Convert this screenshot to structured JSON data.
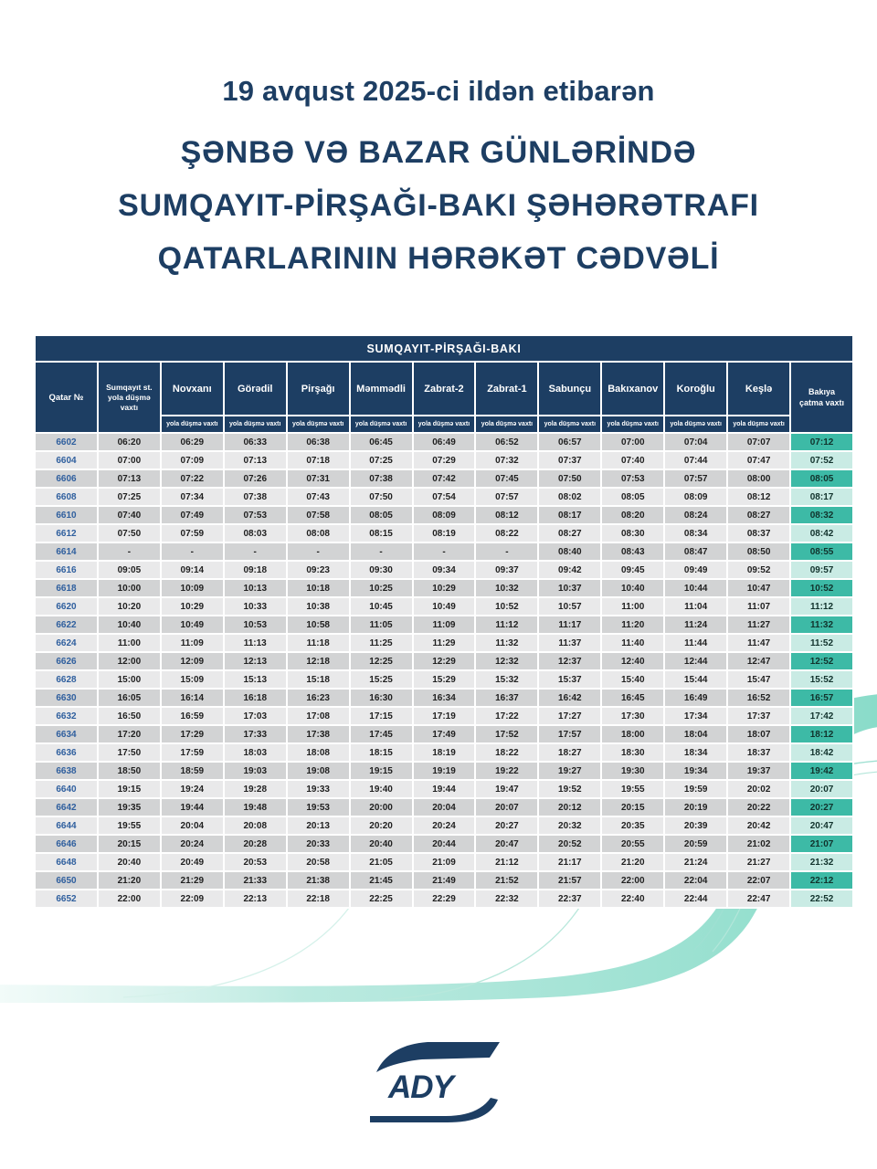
{
  "page": {
    "title_line1": "19 avqust 2025-ci ildən etibarən",
    "title_line2": "ŞƏNBƏ VƏ BAZAR GÜNLƏRİNDƏ",
    "title_line3": "SUMQAYIT-PİRŞAĞI-BAKI ŞƏHƏRƏTRAFI",
    "title_line4": "QATARLARININ HƏRƏKƏT CƏDVƏLİ"
  },
  "colors": {
    "navy": "#1d3e63",
    "train_number_blue": "#2f5f9e",
    "row_dark": "#d2d3d4",
    "row_light": "#e9e9ea",
    "arrival_dark_teal": "#3dbaa6",
    "arrival_light_teal": "#c9ebe4",
    "ribbon_teal": "#8adcc9"
  },
  "table": {
    "banner": "SUMQAYIT-PİRŞAĞI-BAKI",
    "col_train": "Qatar  №",
    "col_sumqayit": "Sumqayıt st.\nyola düşmə\nvaxtı",
    "departure_label": "yola düşmə vaxtı",
    "col_arrival": "Bakıya\nçatma vaxtı",
    "stations": [
      "Novxanı",
      "Görədil",
      "Pirşağı",
      "Məmmədli",
      "Zabrat-2",
      "Zabrat-1",
      "Sabunçu",
      "Bakıxanov",
      "Koroğlu",
      "Keşlə"
    ],
    "rows": [
      {
        "no": "6602",
        "times": [
          "06:20",
          "06:29",
          "06:33",
          "06:38",
          "06:45",
          "06:49",
          "06:52",
          "06:57",
          "07:00",
          "07:04",
          "07:07"
        ],
        "arrival": "07:12"
      },
      {
        "no": "6604",
        "times": [
          "07:00",
          "07:09",
          "07:13",
          "07:18",
          "07:25",
          "07:29",
          "07:32",
          "07:37",
          "07:40",
          "07:44",
          "07:47"
        ],
        "arrival": "07:52"
      },
      {
        "no": "6606",
        "times": [
          "07:13",
          "07:22",
          "07:26",
          "07:31",
          "07:38",
          "07:42",
          "07:45",
          "07:50",
          "07:53",
          "07:57",
          "08:00"
        ],
        "arrival": "08:05"
      },
      {
        "no": "6608",
        "times": [
          "07:25",
          "07:34",
          "07:38",
          "07:43",
          "07:50",
          "07:54",
          "07:57",
          "08:02",
          "08:05",
          "08:09",
          "08:12"
        ],
        "arrival": "08:17"
      },
      {
        "no": "6610",
        "times": [
          "07:40",
          "07:49",
          "07:53",
          "07:58",
          "08:05",
          "08:09",
          "08:12",
          "08:17",
          "08:20",
          "08:24",
          "08:27"
        ],
        "arrival": "08:32"
      },
      {
        "no": "6612",
        "times": [
          "07:50",
          "07:59",
          "08:03",
          "08:08",
          "08:15",
          "08:19",
          "08:22",
          "08:27",
          "08:30",
          "08:34",
          "08:37"
        ],
        "arrival": "08:42"
      },
      {
        "no": "6614",
        "times": [
          "-",
          "-",
          "-",
          "-",
          "-",
          "-",
          "-",
          "08:40",
          "08:43",
          "08:47",
          "08:50"
        ],
        "arrival": "08:55"
      },
      {
        "no": "6616",
        "times": [
          "09:05",
          "09:14",
          "09:18",
          "09:23",
          "09:30",
          "09:34",
          "09:37",
          "09:42",
          "09:45",
          "09:49",
          "09:52"
        ],
        "arrival": "09:57"
      },
      {
        "no": "6618",
        "times": [
          "10:00",
          "10:09",
          "10:13",
          "10:18",
          "10:25",
          "10:29",
          "10:32",
          "10:37",
          "10:40",
          "10:44",
          "10:47"
        ],
        "arrival": "10:52"
      },
      {
        "no": "6620",
        "times": [
          "10:20",
          "10:29",
          "10:33",
          "10:38",
          "10:45",
          "10:49",
          "10:52",
          "10:57",
          "11:00",
          "11:04",
          "11:07"
        ],
        "arrival": "11:12"
      },
      {
        "no": "6622",
        "times": [
          "10:40",
          "10:49",
          "10:53",
          "10:58",
          "11:05",
          "11:09",
          "11:12",
          "11:17",
          "11:20",
          "11:24",
          "11:27"
        ],
        "arrival": "11:32"
      },
      {
        "no": "6624",
        "times": [
          "11:00",
          "11:09",
          "11:13",
          "11:18",
          "11:25",
          "11:29",
          "11:32",
          "11:37",
          "11:40",
          "11:44",
          "11:47"
        ],
        "arrival": "11:52"
      },
      {
        "no": "6626",
        "times": [
          "12:00",
          "12:09",
          "12:13",
          "12:18",
          "12:25",
          "12:29",
          "12:32",
          "12:37",
          "12:40",
          "12:44",
          "12:47"
        ],
        "arrival": "12:52"
      },
      {
        "no": "6628",
        "times": [
          "15:00",
          "15:09",
          "15:13",
          "15:18",
          "15:25",
          "15:29",
          "15:32",
          "15:37",
          "15:40",
          "15:44",
          "15:47"
        ],
        "arrival": "15:52"
      },
      {
        "no": "6630",
        "times": [
          "16:05",
          "16:14",
          "16:18",
          "16:23",
          "16:30",
          "16:34",
          "16:37",
          "16:42",
          "16:45",
          "16:49",
          "16:52"
        ],
        "arrival": "16:57"
      },
      {
        "no": "6632",
        "times": [
          "16:50",
          "16:59",
          "17:03",
          "17:08",
          "17:15",
          "17:19",
          "17:22",
          "17:27",
          "17:30",
          "17:34",
          "17:37"
        ],
        "arrival": "17:42"
      },
      {
        "no": "6634",
        "times": [
          "17:20",
          "17:29",
          "17:33",
          "17:38",
          "17:45",
          "17:49",
          "17:52",
          "17:57",
          "18:00",
          "18:04",
          "18:07"
        ],
        "arrival": "18:12"
      },
      {
        "no": "6636",
        "times": [
          "17:50",
          "17:59",
          "18:03",
          "18:08",
          "18:15",
          "18:19",
          "18:22",
          "18:27",
          "18:30",
          "18:34",
          "18:37"
        ],
        "arrival": "18:42"
      },
      {
        "no": "6638",
        "times": [
          "18:50",
          "18:59",
          "19:03",
          "19:08",
          "19:15",
          "19:19",
          "19:22",
          "19:27",
          "19:30",
          "19:34",
          "19:37"
        ],
        "arrival": "19:42"
      },
      {
        "no": "6640",
        "times": [
          "19:15",
          "19:24",
          "19:28",
          "19:33",
          "19:40",
          "19:44",
          "19:47",
          "19:52",
          "19:55",
          "19:59",
          "20:02"
        ],
        "arrival": "20:07"
      },
      {
        "no": "6642",
        "times": [
          "19:35",
          "19:44",
          "19:48",
          "19:53",
          "20:00",
          "20:04",
          "20:07",
          "20:12",
          "20:15",
          "20:19",
          "20:22"
        ],
        "arrival": "20:27"
      },
      {
        "no": "6644",
        "times": [
          "19:55",
          "20:04",
          "20:08",
          "20:13",
          "20:20",
          "20:24",
          "20:27",
          "20:32",
          "20:35",
          "20:39",
          "20:42"
        ],
        "arrival": "20:47"
      },
      {
        "no": "6646",
        "times": [
          "20:15",
          "20:24",
          "20:28",
          "20:33",
          "20:40",
          "20:44",
          "20:47",
          "20:52",
          "20:55",
          "20:59",
          "21:02"
        ],
        "arrival": "21:07"
      },
      {
        "no": "6648",
        "times": [
          "20:40",
          "20:49",
          "20:53",
          "20:58",
          "21:05",
          "21:09",
          "21:12",
          "21:17",
          "21:20",
          "21:24",
          "21:27"
        ],
        "arrival": "21:32"
      },
      {
        "no": "6650",
        "times": [
          "21:20",
          "21:29",
          "21:33",
          "21:38",
          "21:45",
          "21:49",
          "21:52",
          "21:57",
          "22:00",
          "22:04",
          "22:07"
        ],
        "arrival": "22:12"
      },
      {
        "no": "6652",
        "times": [
          "22:00",
          "22:09",
          "22:13",
          "22:18",
          "22:25",
          "22:29",
          "22:32",
          "22:37",
          "22:40",
          "22:44",
          "22:47"
        ],
        "arrival": "22:52"
      }
    ]
  },
  "logo": {
    "text": "ADY"
  }
}
